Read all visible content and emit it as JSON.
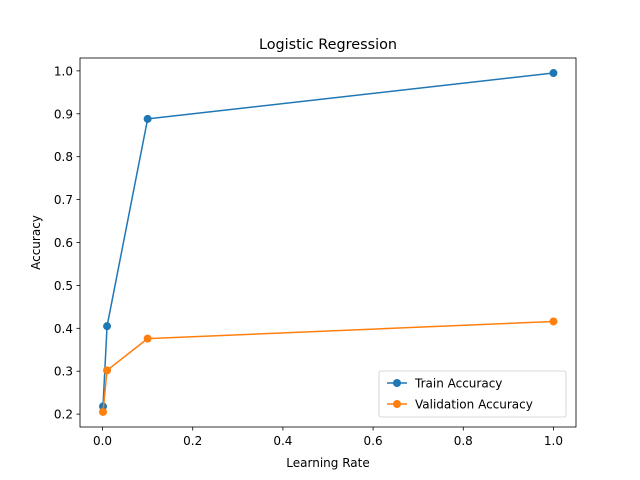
{
  "chart_data": {
    "type": "line",
    "title": "Logistic Regression",
    "xlabel": "Learning Rate",
    "ylabel": "Accuracy",
    "xlim": [
      -0.05,
      1.05
    ],
    "ylim": [
      0.17,
      1.03
    ],
    "xticks": [
      0.0,
      0.2,
      0.4,
      0.6,
      0.8,
      1.0
    ],
    "xtick_labels": [
      "0.0",
      "0.2",
      "0.4",
      "0.6",
      "0.8",
      "1.0"
    ],
    "yticks": [
      0.2,
      0.3,
      0.4,
      0.5,
      0.6,
      0.7,
      0.8,
      0.9,
      1.0
    ],
    "ytick_labels": [
      "0.2",
      "0.3",
      "0.4",
      "0.5",
      "0.6",
      "0.7",
      "0.8",
      "0.9",
      "1.0"
    ],
    "grid": false,
    "legend_position": "bottom-right",
    "x": [
      0.001,
      0.01,
      0.1,
      1.0
    ],
    "series": [
      {
        "name": "Train Accuracy",
        "color": "#1f77b4",
        "values": [
          0.218,
          0.405,
          0.888,
          0.995
        ]
      },
      {
        "name": "Validation Accuracy",
        "color": "#ff7f0e",
        "values": [
          0.205,
          0.302,
          0.376,
          0.416
        ]
      }
    ]
  }
}
